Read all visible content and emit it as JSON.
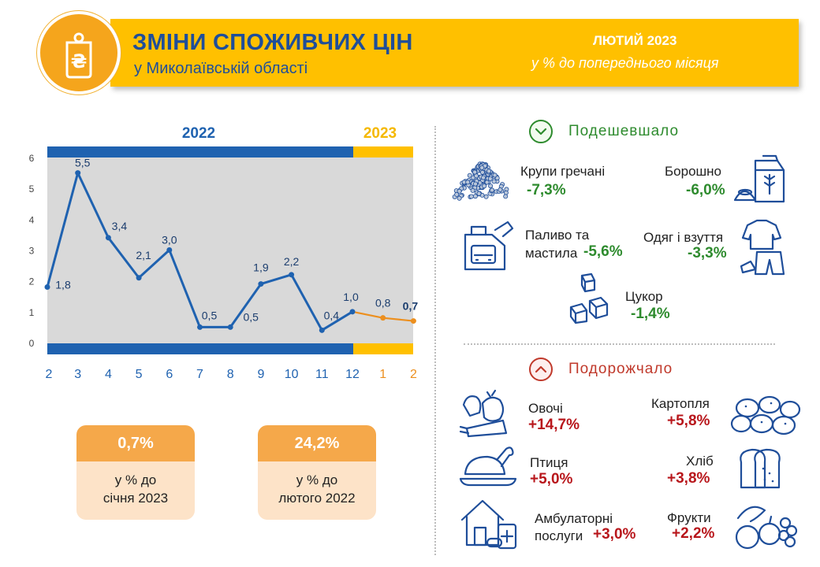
{
  "header": {
    "title": "ЗМІНИ СПОЖИВЧИХ ЦІН",
    "subtitle": "у Миколаївській області",
    "period": "ЛЮТИЙ 2023",
    "period_note": "у % до попереднього місяця",
    "logo_icon": "price-tag-hryvnia-icon",
    "brand_color": "#ffc000"
  },
  "chart_data": {
    "type": "line",
    "year_labels": [
      "2022",
      "2023"
    ],
    "categories": [
      "2",
      "3",
      "4",
      "5",
      "6",
      "7",
      "8",
      "9",
      "10",
      "11",
      "12",
      "1",
      "2"
    ],
    "values": [
      1.8,
      5.5,
      3.4,
      2.1,
      3.0,
      0.5,
      0.5,
      1.9,
      2.2,
      0.4,
      1.0,
      0.8,
      0.7
    ],
    "value_labels": [
      "1,8",
      "5,5",
      "3,4",
      "2,1",
      "3,0",
      "0,5",
      "0,5",
      "1,9",
      "2,2",
      "0,4",
      "1,0",
      "0,8",
      "0,7"
    ],
    "y_ticks": [
      "0",
      "1",
      "2",
      "3",
      "4",
      "5",
      "6"
    ],
    "ylim": [
      0,
      6
    ],
    "grid": false,
    "colors": {
      "2022": "#1f62b0",
      "2023": "#ec8f1e",
      "plot_bg": "#d9d9d9"
    }
  },
  "kpis": [
    {
      "value": "0,7%",
      "line1": "у % до",
      "line2": "січня 2023"
    },
    {
      "value": "24,2%",
      "line1": "у % до",
      "line2": "лютого 2022"
    }
  ],
  "cheaper": {
    "title": "Подешевшало",
    "icon": "chevron-down-icon",
    "items": [
      {
        "name": "Крупи гречані",
        "value": "-7,3%",
        "icon": "buckwheat-icon"
      },
      {
        "name": "Борошно",
        "value": "-6,0%",
        "icon": "flour-icon"
      },
      {
        "name1": "Паливо та",
        "name2": "мастила",
        "value": "-5,6%",
        "icon": "fuel-canister-icon"
      },
      {
        "name": "Одяг і взуття",
        "value": "-3,3%",
        "icon": "clothes-icon"
      },
      {
        "name": "Цукор",
        "value": "-1,4%",
        "icon": "sugar-cubes-icon"
      }
    ]
  },
  "pricier": {
    "title": "Подорожчало",
    "icon": "chevron-up-icon",
    "items": [
      {
        "name": "Овочі",
        "value": "+14,7%",
        "icon": "vegetables-icon"
      },
      {
        "name": "Картопля",
        "value": "+5,8%",
        "icon": "potatoes-icon"
      },
      {
        "name": "Птиця",
        "value": "+5,0%",
        "icon": "poultry-icon"
      },
      {
        "name": "Хліб",
        "value": "+3,8%",
        "icon": "bread-icon"
      },
      {
        "name1": "Амбулаторні",
        "name2": "послуги",
        "value": "+3,0%",
        "icon": "clinic-icon"
      },
      {
        "name": "Фрукти",
        "value": "+2,2%",
        "icon": "fruits-icon"
      }
    ]
  }
}
